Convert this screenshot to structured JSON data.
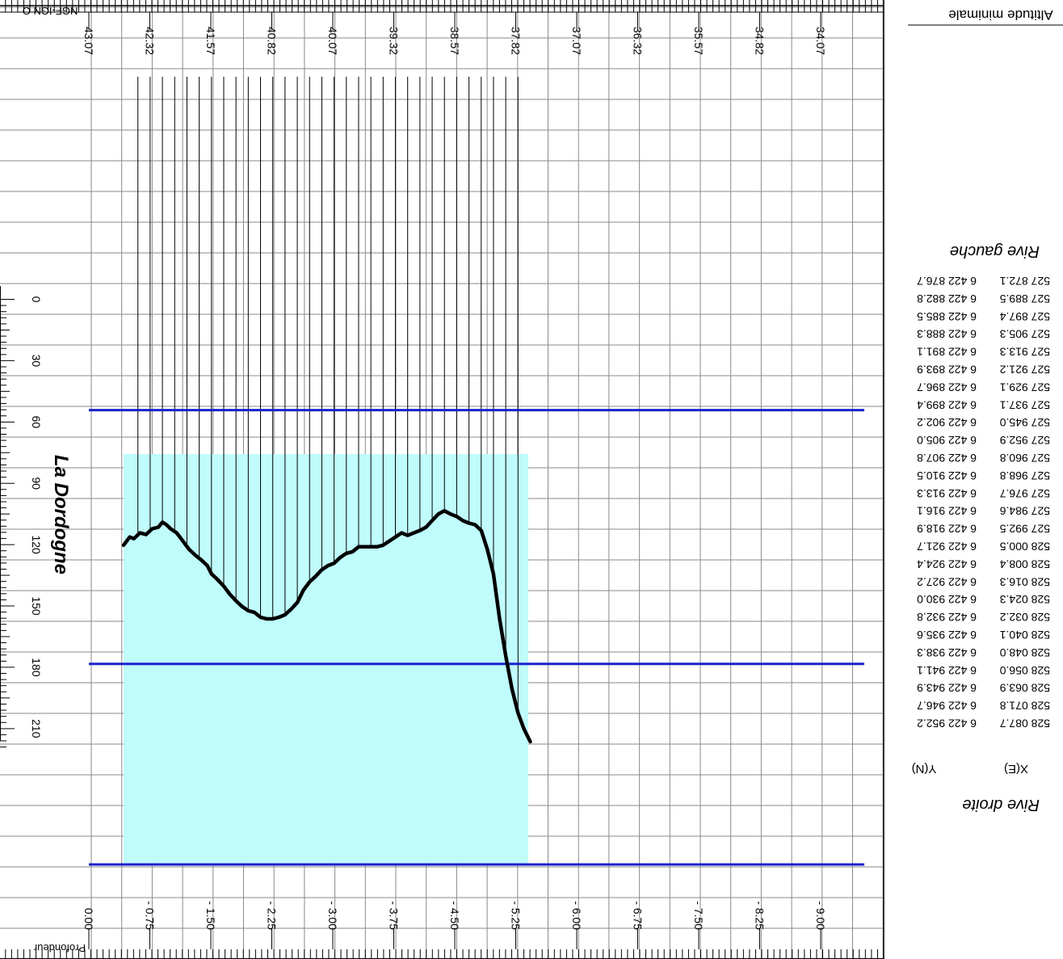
{
  "chart_data": {
    "type": "line",
    "orientation": "rotated-180",
    "headers": {
      "min_altitude_label": "Altitude minimale",
      "elevation_axis_label": "NGF-IGN O",
      "depth_axis_label": "Profondeur",
      "left_bank_label": "Rive gauche",
      "right_bank_label": "Rive droite",
      "river_label": "La Dordogne",
      "coord_x_header": "X(E)",
      "coord_y_header": "Y(N)"
    },
    "elevation_ticks": [
      "43.07",
      "42.32",
      "41.57",
      "40.82",
      "40.07",
      "39.32",
      "38.57",
      "37.82",
      "37.07",
      "36.32",
      "35.57",
      "34.82",
      "34.07"
    ],
    "depth_ticks": [
      "0.00",
      "- 0.75",
      "- 1.50",
      "- 2.25",
      "- 3.00",
      "- 3.75",
      "- 4.50",
      "- 5.25",
      "- 6.00",
      "- 6.75",
      "- 7.50",
      "- 8.25",
      "- 9.00"
    ],
    "distance_ticks": [
      "0",
      "30",
      "60",
      "90",
      "120",
      "150",
      "180",
      "210"
    ],
    "xlim": [
      0,
      220
    ],
    "ylim": [
      0,
      -9.75
    ],
    "water_surface": {
      "depth": 0.0,
      "extent": [
        17,
        215
      ]
    },
    "reference_lines_depth": [
      0.0,
      -2.45,
      -5.55
    ],
    "bed_profile": {
      "x": [
        17,
        20,
        22,
        25,
        28,
        31,
        34,
        36,
        38,
        40,
        43,
        46,
        49,
        52,
        55,
        58,
        60,
        63,
        66,
        69,
        72,
        75,
        78,
        81,
        84,
        87,
        90,
        93,
        96,
        99,
        102,
        105,
        108,
        111,
        114,
        117,
        120,
        123,
        126,
        129,
        132,
        135,
        138,
        141,
        144,
        147,
        150,
        153,
        156,
        159,
        162,
        165,
        168,
        171,
        174,
        177,
        180,
        183,
        186,
        189,
        192,
        195,
        198,
        201,
        204,
        207,
        210,
        213,
        216
      ],
      "y": [
        -3.9,
        -4.0,
        -3.98,
        -4.05,
        -4.03,
        -4.1,
        -4.12,
        -4.18,
        -4.15,
        -4.1,
        -4.05,
        -3.95,
        -3.85,
        -3.78,
        -3.72,
        -3.65,
        -3.55,
        -3.48,
        -3.4,
        -3.3,
        -3.22,
        -3.15,
        -3.1,
        -3.08,
        -3.02,
        -3.0,
        -3.0,
        -3.02,
        -3.05,
        -3.12,
        -3.2,
        -3.35,
        -3.45,
        -3.52,
        -3.6,
        -3.65,
        -3.68,
        -3.75,
        -3.8,
        -3.82,
        -3.88,
        -3.88,
        -3.88,
        -3.88,
        -3.9,
        -3.95,
        -4.0,
        -4.05,
        -4.02,
        -4.05,
        -4.08,
        -4.12,
        -4.2,
        -4.28,
        -4.32,
        -4.28,
        -4.25,
        -4.2,
        -4.17,
        -4.15,
        -4.08,
        -3.85,
        -3.55,
        -3.0,
        -2.55,
        -2.15,
        -1.85,
        -1.65,
        -1.5
      ]
    },
    "section_lines_x": [
      210,
      204,
      198,
      192,
      186,
      180,
      174,
      168,
      162,
      156,
      150,
      144,
      138,
      132,
      126,
      120,
      114,
      108,
      102,
      96,
      90,
      84,
      78,
      72,
      66,
      60,
      54,
      48,
      42,
      36,
      30,
      24
    ],
    "station_coordinates": [
      {
        "dist": 216,
        "x": "527 872.1",
        "y": "6 422 876.7"
      },
      {
        "dist": 210,
        "x": "527 889.5",
        "y": "6 422 882.8"
      },
      {
        "dist": 204,
        "x": "527 897.4",
        "y": "6 422 885.5"
      },
      {
        "dist": 198,
        "x": "527 905.3",
        "y": "6 422 888.3"
      },
      {
        "dist": 192,
        "x": "527 913.3",
        "y": "6 422 891.1"
      },
      {
        "dist": 186,
        "x": "527 921.2",
        "y": "6 422 893.9"
      },
      {
        "dist": 180,
        "x": "527 929.1",
        "y": "6 422 896.7"
      },
      {
        "dist": 174,
        "x": "527 937.1",
        "y": "6 422 899.4"
      },
      {
        "dist": 168,
        "x": "527 945.0",
        "y": "6 422 902.2"
      },
      {
        "dist": 162,
        "x": "527 952.9",
        "y": "6 422 905.0"
      },
      {
        "dist": 156,
        "x": "527 960.8",
        "y": "6 422 907.8"
      },
      {
        "dist": 150,
        "x": "527 968.8",
        "y": "6 422 910.5"
      },
      {
        "dist": 144,
        "x": "527 976.7",
        "y": "6 422 913.3"
      },
      {
        "dist": 138,
        "x": "527 984.6",
        "y": "6 422 916.1"
      },
      {
        "dist": 132,
        "x": "527 992.5",
        "y": "6 422 918.9"
      },
      {
        "dist": 126,
        "x": "528 000.5",
        "y": "6 422 921.7"
      },
      {
        "dist": 120,
        "x": "528 008.4",
        "y": "6 422 924.4"
      },
      {
        "dist": 114,
        "x": "528 016.3",
        "y": "6 422 927.2"
      },
      {
        "dist": 108,
        "x": "528 024.3",
        "y": "6 422 930.0"
      },
      {
        "dist": 102,
        "x": "528 032.2",
        "y": "6 422 932.8"
      },
      {
        "dist": 96,
        "x": "528 040.1",
        "y": "6 422 935.6"
      },
      {
        "dist": 90,
        "x": "528 048.0",
        "y": "6 422 938.3"
      },
      {
        "dist": 84,
        "x": "528 056.0",
        "y": "6 422 941.1"
      },
      {
        "dist": 78,
        "x": "528 063.9",
        "y": "6 422 943.9"
      },
      {
        "dist": 72,
        "x": "528 071.8",
        "y": "6 422 946.7"
      },
      {
        "dist": 66,
        "x": "528 087.7",
        "y": "6 422 952.2"
      }
    ],
    "colors": {
      "water": "#c0fcfc",
      "reference_line": "#1a22cc",
      "profile": "#000000",
      "grid": "#8a8a8a"
    }
  }
}
